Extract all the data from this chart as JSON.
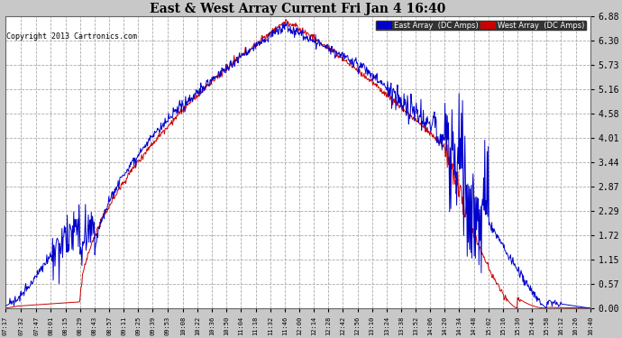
{
  "title": "East & West Array Current Fri Jan 4 16:40",
  "copyright": "Copyright 2013 Cartronics.com",
  "background_color": "#c8c8c8",
  "plot_bg_color": "#ffffff",
  "grid_color": "#aaaaaa",
  "east_color": "#0000cc",
  "west_color": "#cc0000",
  "east_label": "East Array  (DC Amps)",
  "west_label": "West Array  (DC Amps)",
  "yticks": [
    0.0,
    0.57,
    1.15,
    1.72,
    2.29,
    2.87,
    3.44,
    4.01,
    4.58,
    5.16,
    5.73,
    6.3,
    6.88
  ],
  "ymax": 6.88,
  "ymin": 0.0,
  "xtick_labels": [
    "07:17",
    "07:32",
    "07:47",
    "08:01",
    "08:15",
    "08:29",
    "08:43",
    "08:57",
    "09:11",
    "09:25",
    "09:39",
    "09:53",
    "10:08",
    "10:22",
    "10:36",
    "10:50",
    "11:04",
    "11:18",
    "11:32",
    "11:46",
    "12:00",
    "12:14",
    "12:28",
    "12:42",
    "12:56",
    "13:10",
    "13:24",
    "13:38",
    "13:52",
    "14:06",
    "14:20",
    "14:34",
    "14:48",
    "15:02",
    "15:16",
    "15:30",
    "15:44",
    "15:58",
    "16:12",
    "16:26",
    "16:40"
  ],
  "n_points": 1000
}
